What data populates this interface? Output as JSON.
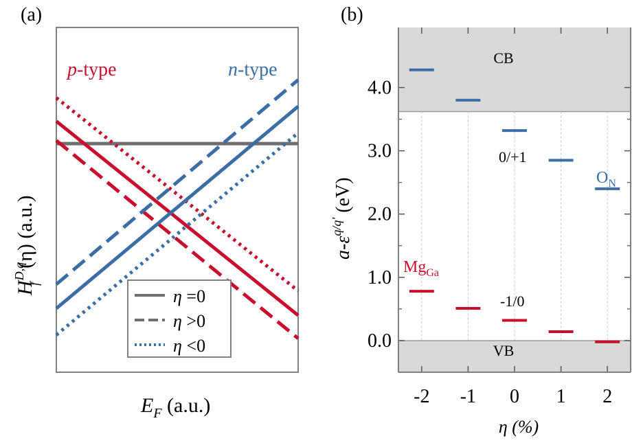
{
  "chart_data": [
    {
      "type": "line",
      "panel_label": "(a)",
      "xlabel_main": "E",
      "xlabel_sub": "F",
      "xlabel_unit": " (a.u.)",
      "ylabel_main": "H",
      "ylabel_sub": "f",
      "ylabel_sup": "D,q",
      "ylabel_arg": "(η) (a.u.)",
      "xlim": [
        0,
        1
      ],
      "ylim": [
        0,
        1
      ],
      "annotations": [
        {
          "text_italic": "p",
          "text": "-type",
          "color": "#c8102e"
        },
        {
          "text_italic": "n",
          "text": "-type",
          "color": "#3a6ea5"
        }
      ],
      "legend": {
        "placement": "bottom-right",
        "entries": [
          {
            "symbol": "η",
            "text": " =0",
            "style": "solid"
          },
          {
            "symbol": "η",
            "text": " >0",
            "style": "dashed"
          },
          {
            "symbol": "η",
            "text": " <0",
            "style": "dotted"
          }
        ]
      },
      "series": [
        {
          "group": "neutral",
          "style": "solid",
          "color": "#6e6e6e",
          "x": [
            0,
            1
          ],
          "y": [
            0.663,
            0.663
          ]
        },
        {
          "group": "p-type",
          "style": "solid",
          "color": "#c8102e",
          "x": [
            0,
            1
          ],
          "y": [
            0.728,
            0.165
          ]
        },
        {
          "group": "p-type",
          "style": "dashed",
          "color": "#c8102e",
          "x": [
            0,
            1
          ],
          "y": [
            0.672,
            0.098
          ]
        },
        {
          "group": "p-type",
          "style": "dotted",
          "color": "#c8102e",
          "x": [
            0,
            1
          ],
          "y": [
            0.796,
            0.236
          ]
        },
        {
          "group": "n-type",
          "style": "solid",
          "color": "#3a6ea5",
          "x": [
            0,
            1
          ],
          "y": [
            0.185,
            0.771
          ]
        },
        {
          "group": "n-type",
          "style": "dashed",
          "color": "#3a6ea5",
          "x": [
            0,
            1
          ],
          "y": [
            0.255,
            0.848
          ]
        },
        {
          "group": "n-type",
          "style": "dotted",
          "color": "#3a6ea5",
          "x": [
            0,
            1
          ],
          "y": [
            0.108,
            0.694
          ]
        }
      ],
      "colors": {
        "p": "#c8102e",
        "n": "#3a6ea5",
        "neutral": "#6e6e6e",
        "axis": "#808080"
      }
    },
    {
      "type": "scatter",
      "panel_label": "(b)",
      "xlabel": "η (%)",
      "ylabel_main": "a-ε",
      "ylabel_sup": "q/q'",
      "ylabel_unit": " (eV)",
      "xlim": [
        -2.5,
        2.5
      ],
      "ylim": [
        -0.5,
        4.95
      ],
      "x_ticks": [
        -2,
        -1,
        0,
        1,
        2
      ],
      "x_tick_labels": [
        "-2",
        "-1",
        "0",
        "1",
        "2"
      ],
      "y_ticks": [
        0.0,
        1.0,
        2.0,
        3.0,
        4.0
      ],
      "y_tick_labels": [
        "0.0",
        "1.0",
        "2.0",
        "3.0",
        "4.0"
      ],
      "bands": [
        {
          "label": "CB",
          "from": 3.62,
          "to": 4.95,
          "color": "#d9d9d9"
        },
        {
          "label": "VB",
          "from": -0.5,
          "to": 0.0,
          "color": "#d9d9d9"
        }
      ],
      "vertical_grid": true,
      "series": [
        {
          "name_main": "O",
          "name_sub": "N",
          "transition": "0/+1",
          "color": "#3a6ea5",
          "x": [
            -2,
            -1,
            0,
            1,
            2
          ],
          "y": [
            4.28,
            3.8,
            3.32,
            2.85,
            2.4
          ]
        },
        {
          "name_main": "Mg",
          "name_sub": "Ga",
          "transition": "-1/0",
          "color": "#c8102e",
          "x": [
            -2,
            -1,
            0,
            1,
            2
          ],
          "y": [
            0.78,
            0.51,
            0.32,
            0.14,
            -0.02
          ]
        }
      ]
    }
  ]
}
